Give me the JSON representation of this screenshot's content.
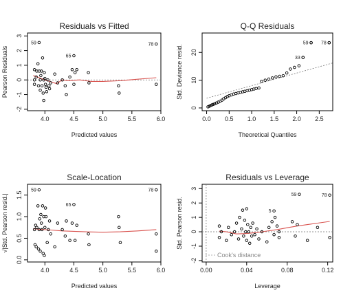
{
  "chart_data": [
    {
      "type": "scatter",
      "title": "Residuals vs Fitted",
      "xlabel": "Predicted values",
      "ylabel": "Pearson Residuals",
      "xlim": [
        3.7,
        6.0
      ],
      "ylim": [
        -2.1,
        3.2
      ],
      "xticks": [
        "4.0",
        "4.5",
        "5.0",
        "5.5",
        "6.0"
      ],
      "yticks": [
        "-2",
        "-1",
        "0",
        "1",
        "2",
        "3"
      ],
      "reference_lines": [
        {
          "type": "hline",
          "y": 0,
          "style": "dotted"
        }
      ],
      "points": [
        [
          3.82,
          0.7
        ],
        [
          3.82,
          0.0
        ],
        [
          3.82,
          -0.3
        ],
        [
          3.85,
          0.2
        ],
        [
          3.86,
          0.6
        ],
        [
          3.88,
          1.1
        ],
        [
          3.89,
          -0.4
        ],
        [
          3.9,
          0.6
        ],
        [
          3.92,
          0.0
        ],
        [
          3.92,
          -0.7
        ],
        [
          3.93,
          0.3
        ],
        [
          3.94,
          0.6
        ],
        [
          3.95,
          -0.4
        ],
        [
          3.96,
          1.5
        ],
        [
          3.97,
          -0.9
        ],
        [
          3.98,
          0.0
        ],
        [
          3.98,
          -1.4
        ],
        [
          3.99,
          0.5
        ],
        [
          4.0,
          0.1
        ],
        [
          4.01,
          -0.3
        ],
        [
          4.02,
          -0.5
        ],
        [
          4.03,
          -0.8
        ],
        [
          4.05,
          0.0
        ],
        [
          4.07,
          -0.4
        ],
        [
          4.08,
          -0.6
        ],
        [
          4.1,
          -0.2
        ],
        [
          4.17,
          0.4
        ],
        [
          4.22,
          -0.2
        ],
        [
          4.3,
          0.0
        ],
        [
          4.35,
          -0.4
        ],
        [
          4.37,
          -1.0
        ],
        [
          4.43,
          0.2
        ],
        [
          4.47,
          0.7
        ],
        [
          4.5,
          -0.3
        ],
        [
          4.52,
          0.5
        ],
        [
          4.55,
          0.7
        ],
        [
          4.75,
          0.5
        ],
        [
          4.76,
          -0.2
        ],
        [
          5.27,
          -0.4
        ],
        [
          5.28,
          -0.9
        ],
        [
          5.92,
          -0.3
        ]
      ],
      "labeled_points": [
        {
          "label": "59",
          "x": 3.9,
          "y": 2.55
        },
        {
          "label": "65",
          "x": 4.5,
          "y": 1.65
        },
        {
          "label": "78",
          "x": 5.92,
          "y": 2.45
        }
      ],
      "smoother": [
        [
          3.8,
          0.3
        ],
        [
          3.9,
          0.15
        ],
        [
          4.0,
          0.0
        ],
        [
          4.1,
          -0.12
        ],
        [
          4.2,
          -0.25
        ],
        [
          4.3,
          0.0
        ],
        [
          4.4,
          -0.05
        ],
        [
          4.6,
          0.0
        ],
        [
          4.8,
          -0.1
        ],
        [
          5.0,
          -0.1
        ],
        [
          5.3,
          -0.05
        ],
        [
          5.6,
          0.05
        ],
        [
          5.92,
          0.15
        ]
      ]
    },
    {
      "type": "scatter",
      "title": "Q-Q Residuals",
      "xlabel": "Theoretical Quantiles",
      "ylabel": "Std. Deviance resid.",
      "xlim": [
        -0.1,
        2.8
      ],
      "ylim": [
        -1.0,
        27
      ],
      "xticks": [
        "0.0",
        "0.5",
        "1.0",
        "1.5",
        "2.0",
        "2.5"
      ],
      "yticks": [
        "0",
        "10",
        "20"
      ],
      "reference_lines": [
        {
          "type": "line",
          "from": [
            0,
            3.5
          ],
          "to": [
            2.8,
            16.2
          ],
          "style": "dotted"
        }
      ],
      "points": [
        [
          0.03,
          0.4
        ],
        [
          0.06,
          0.6
        ],
        [
          0.09,
          0.9
        ],
        [
          0.12,
          1.1
        ],
        [
          0.15,
          1.3
        ],
        [
          0.18,
          1.5
        ],
        [
          0.22,
          1.8
        ],
        [
          0.26,
          2.1
        ],
        [
          0.3,
          2.4
        ],
        [
          0.34,
          2.8
        ],
        [
          0.38,
          3.3
        ],
        [
          0.42,
          3.7
        ],
        [
          0.46,
          4.1
        ],
        [
          0.5,
          4.4
        ],
        [
          0.55,
          4.7
        ],
        [
          0.6,
          5.0
        ],
        [
          0.65,
          5.2
        ],
        [
          0.7,
          5.4
        ],
        [
          0.75,
          5.6
        ],
        [
          0.8,
          5.8
        ],
        [
          0.85,
          6.0
        ],
        [
          0.9,
          6.2
        ],
        [
          0.95,
          6.4
        ],
        [
          1.0,
          6.6
        ],
        [
          1.05,
          6.8
        ],
        [
          1.1,
          7.0
        ],
        [
          1.16,
          7.2
        ],
        [
          1.22,
          9.6
        ],
        [
          1.3,
          10.0
        ],
        [
          1.38,
          10.4
        ],
        [
          1.46,
          10.8
        ],
        [
          1.54,
          11.2
        ],
        [
          1.62,
          11.4
        ],
        [
          1.7,
          11.6
        ],
        [
          1.78,
          12.6
        ],
        [
          1.86,
          14.0
        ],
        [
          1.95,
          14.6
        ],
        [
          2.05,
          15.2
        ],
        [
          2.14,
          18.2
        ],
        [
          2.32,
          23.5
        ],
        [
          2.72,
          23.5
        ]
      ],
      "labeled_points": [
        {
          "label": "33",
          "x": 2.14,
          "y": 18.2
        },
        {
          "label": "59",
          "x": 2.32,
          "y": 23.5
        },
        {
          "label": "78",
          "x": 2.72,
          "y": 23.5
        }
      ]
    },
    {
      "type": "scatter",
      "title": "Scale-Location",
      "xlabel": "Predicted values",
      "ylabel": "√|Std. Pearson resid.|",
      "xlim": [
        3.7,
        6.0
      ],
      "ylim": [
        -0.05,
        1.75
      ],
      "xticks": [
        "4.0",
        "4.5",
        "5.0",
        "5.5",
        "6.0"
      ],
      "yticks": [
        "0.0",
        "0.5",
        "1.0",
        "1.5"
      ],
      "points": [
        [
          3.82,
          0.7
        ],
        [
          3.83,
          0.35
        ],
        [
          3.84,
          0.8
        ],
        [
          3.85,
          0.3
        ],
        [
          3.86,
          0.75
        ],
        [
          3.88,
          1.25
        ],
        [
          3.89,
          0.25
        ],
        [
          3.9,
          0.7
        ],
        [
          3.91,
          0.95
        ],
        [
          3.92,
          0.2
        ],
        [
          3.93,
          1.05
        ],
        [
          3.94,
          0.85
        ],
        [
          3.95,
          0.7
        ],
        [
          3.96,
          1.25
        ],
        [
          3.97,
          0.15
        ],
        [
          3.98,
          1.0
        ],
        [
          3.99,
          0.1
        ],
        [
          4.0,
          0.75
        ],
        [
          4.01,
          1.2
        ],
        [
          4.02,
          1.0
        ],
        [
          4.04,
          0.4
        ],
        [
          4.06,
          0.7
        ],
        [
          4.08,
          0.9
        ],
        [
          4.1,
          0.6
        ],
        [
          4.17,
          0.3
        ],
        [
          4.22,
          0.85
        ],
        [
          4.3,
          0.7
        ],
        [
          4.35,
          0.55
        ],
        [
          4.37,
          0.9
        ],
        [
          4.43,
          0.45
        ],
        [
          4.47,
          0.85
        ],
        [
          4.52,
          0.45
        ],
        [
          4.55,
          0.8
        ],
        [
          4.75,
          0.6
        ],
        [
          4.76,
          0.35
        ],
        [
          5.27,
          1.0
        ],
        [
          5.28,
          0.75
        ],
        [
          5.3,
          0.4
        ],
        [
          5.92,
          0.2
        ],
        [
          5.92,
          0.6
        ]
      ],
      "labeled_points": [
        {
          "label": "59",
          "x": 3.9,
          "y": 1.62
        },
        {
          "label": "65",
          "x": 4.5,
          "y": 1.28
        },
        {
          "label": "78",
          "x": 5.92,
          "y": 1.62
        }
      ],
      "smoother": [
        [
          3.8,
          0.72
        ],
        [
          3.9,
          0.71
        ],
        [
          4.0,
          0.7
        ],
        [
          4.1,
          0.69
        ],
        [
          4.3,
          0.67
        ],
        [
          4.5,
          0.66
        ],
        [
          4.7,
          0.65
        ],
        [
          5.0,
          0.64
        ],
        [
          5.3,
          0.65
        ],
        [
          5.6,
          0.67
        ],
        [
          5.92,
          0.7
        ]
      ]
    },
    {
      "type": "scatter",
      "title": "Residuals vs Leverage",
      "xlabel": "Leverage",
      "ylabel": "Std. Pearson resid.",
      "xlim": [
        -0.004,
        0.125
      ],
      "ylim": [
        -2.1,
        3.3
      ],
      "xticks": [
        "0.00",
        "0.04",
        "0.08",
        "0.12"
      ],
      "yticks": [
        "-2",
        "-1",
        "0",
        "1",
        "2",
        "3"
      ],
      "legend": {
        "text": "Cook's distance",
        "position": "bottom-left"
      },
      "reference_lines": [
        {
          "type": "hline",
          "y": 0,
          "style": "dotted"
        },
        {
          "type": "vline",
          "x": 0,
          "style": "dotted"
        }
      ],
      "points": [
        [
          0.013,
          0.4
        ],
        [
          0.013,
          -0.4
        ],
        [
          0.015,
          0.0
        ],
        [
          0.02,
          -0.6
        ],
        [
          0.022,
          0.3
        ],
        [
          0.025,
          -0.2
        ],
        [
          0.028,
          0.0
        ],
        [
          0.03,
          0.6
        ],
        [
          0.032,
          -0.5
        ],
        [
          0.033,
          1.0
        ],
        [
          0.035,
          0.2
        ],
        [
          0.036,
          1.5
        ],
        [
          0.037,
          -0.3
        ],
        [
          0.038,
          0.8
        ],
        [
          0.039,
          0.0
        ],
        [
          0.04,
          1.6
        ],
        [
          0.04,
          -0.6
        ],
        [
          0.041,
          0.5
        ],
        [
          0.042,
          0.0
        ],
        [
          0.043,
          -0.8
        ],
        [
          0.044,
          0.3
        ],
        [
          0.045,
          -0.3
        ],
        [
          0.046,
          0.6
        ],
        [
          0.048,
          -0.2
        ],
        [
          0.05,
          0.2
        ],
        [
          0.052,
          -0.5
        ],
        [
          0.055,
          0.0
        ],
        [
          0.06,
          -0.7
        ],
        [
          0.062,
          0.3
        ],
        [
          0.065,
          0.7
        ],
        [
          0.067,
          -0.2
        ],
        [
          0.068,
          1.0
        ],
        [
          0.07,
          0.4
        ],
        [
          0.072,
          0.0
        ],
        [
          0.072,
          -0.4
        ],
        [
          0.085,
          0.7
        ],
        [
          0.088,
          -0.3
        ],
        [
          0.09,
          0.5
        ],
        [
          0.1,
          -0.6
        ],
        [
          0.11,
          0.3
        ],
        [
          0.122,
          -0.4
        ]
      ],
      "labeled_points": [
        {
          "label": "5",
          "x": 0.067,
          "y": 1.45
        },
        {
          "label": "59",
          "x": 0.092,
          "y": 2.6
        },
        {
          "label": "78",
          "x": 0.122,
          "y": 2.55
        }
      ],
      "smoother": [
        [
          0.013,
          0.05
        ],
        [
          0.02,
          0.0
        ],
        [
          0.03,
          -0.15
        ],
        [
          0.04,
          -0.12
        ],
        [
          0.05,
          -0.05
        ],
        [
          0.06,
          0.05
        ],
        [
          0.07,
          0.15
        ],
        [
          0.08,
          0.28
        ],
        [
          0.09,
          0.4
        ],
        [
          0.1,
          0.5
        ],
        [
          0.11,
          0.6
        ],
        [
          0.122,
          0.72
        ]
      ]
    }
  ]
}
